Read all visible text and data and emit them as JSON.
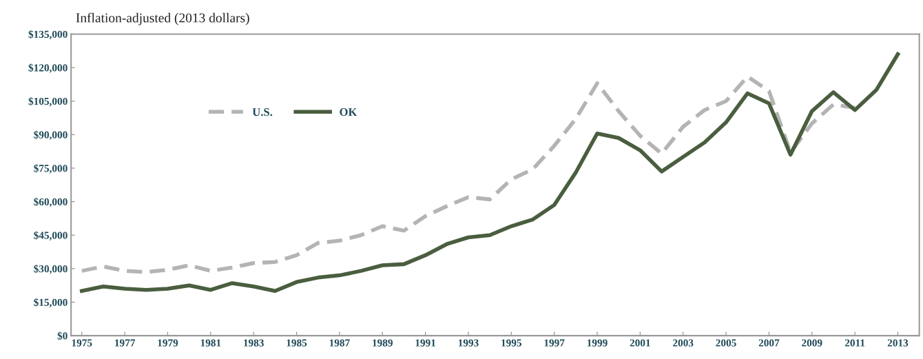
{
  "chart_data": {
    "type": "line",
    "title": "Inflation-adjusted (2013 dollars)",
    "x": [
      1975,
      1976,
      1977,
      1978,
      1979,
      1980,
      1981,
      1982,
      1983,
      1984,
      1985,
      1986,
      1987,
      1988,
      1989,
      1990,
      1991,
      1992,
      1993,
      1994,
      1995,
      1996,
      1997,
      1998,
      1999,
      2000,
      2001,
      2002,
      2003,
      2004,
      2005,
      2006,
      2007,
      2008,
      2009,
      2010,
      2011,
      2012,
      2013
    ],
    "series": [
      {
        "name": "U.S.",
        "color": "#b4b4b4",
        "line_style": "dashed",
        "values": [
          29000,
          31000,
          29000,
          28500,
          29500,
          31500,
          29000,
          30500,
          32500,
          33000,
          36000,
          41500,
          42500,
          45000,
          49000,
          47000,
          53500,
          58000,
          62000,
          61000,
          70000,
          74500,
          85000,
          97000,
          113000,
          100500,
          89500,
          81500,
          93500,
          101000,
          105000,
          116000,
          109500,
          82000,
          95000,
          103500,
          102000,
          null,
          null
        ]
      },
      {
        "name": "OK",
        "color": "#4a5e3f",
        "line_style": "solid",
        "values": [
          20000,
          22000,
          21000,
          20500,
          21000,
          22500,
          20500,
          23500,
          22000,
          20000,
          24000,
          26000,
          27000,
          29000,
          31500,
          32000,
          36000,
          41000,
          44000,
          45000,
          49000,
          52000,
          58500,
          73000,
          90500,
          88500,
          83000,
          73500,
          80000,
          86500,
          95500,
          108500,
          104000,
          81000,
          100500,
          109000,
          101000,
          110000,
          126000
        ]
      }
    ],
    "xlim": [
      1974.5,
      2014
    ],
    "xticks": [
      1975,
      1977,
      1979,
      1981,
      1983,
      1985,
      1987,
      1989,
      1991,
      1993,
      1995,
      1997,
      1999,
      2001,
      2003,
      2005,
      2007,
      2009,
      2011,
      2013
    ],
    "ylim": [
      0,
      135000
    ],
    "yticks": [
      {
        "value": 0,
        "label": "$0"
      },
      {
        "value": 15000,
        "label": "$15,000"
      },
      {
        "value": 30000,
        "label": "$30,000"
      },
      {
        "value": 45000,
        "label": "$45,000"
      },
      {
        "value": 60000,
        "label": "$60,000"
      },
      {
        "value": 75000,
        "label": "$75,000"
      },
      {
        "value": 90000,
        "label": "$90,000"
      },
      {
        "value": 105000,
        "label": "$105,000"
      },
      {
        "value": 120000,
        "label": "$120,000"
      },
      {
        "value": 135000,
        "label": "$135,000"
      }
    ],
    "grid": false,
    "legend": "top left"
  }
}
